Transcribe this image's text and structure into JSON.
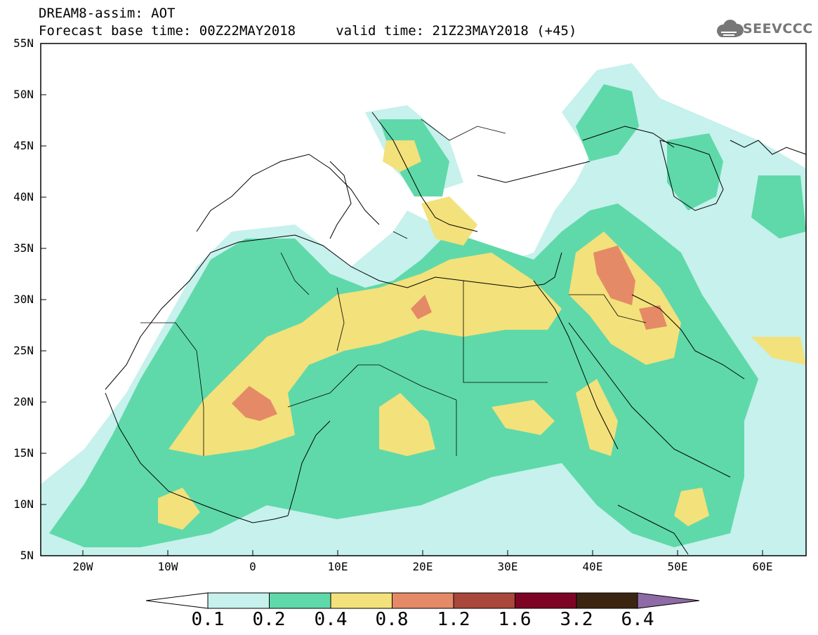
{
  "header": {
    "line1": "DREAM8-assim: AOT",
    "line2": "Forecast base time: 00Z22MAY2018     valid time: 21Z23MAY2018 (+45)",
    "logo_text": "SEEVCCC"
  },
  "map": {
    "y_labels": [
      "55N",
      "50N",
      "45N",
      "40N",
      "35N",
      "30N",
      "25N",
      "20N",
      "15N",
      "10N",
      "5N"
    ],
    "x_labels": [
      "20W",
      "10W",
      "0",
      "10E",
      "20E",
      "30E",
      "40E",
      "50E",
      "60E"
    ],
    "lon_range": [
      -25,
      65
    ],
    "lat_range": [
      5,
      55
    ]
  },
  "colorbar": {
    "labels": [
      "0.1",
      "0.2",
      "0.4",
      "0.8",
      "1.2",
      "1.6",
      "3.2",
      "6.4"
    ],
    "colors": [
      "#ffffff",
      "#c6f1ec",
      "#5fd9a9",
      "#f3e17b",
      "#e58a67",
      "#a8473a",
      "#7d0425",
      "#3b2511",
      "#8e6aa6"
    ]
  }
}
